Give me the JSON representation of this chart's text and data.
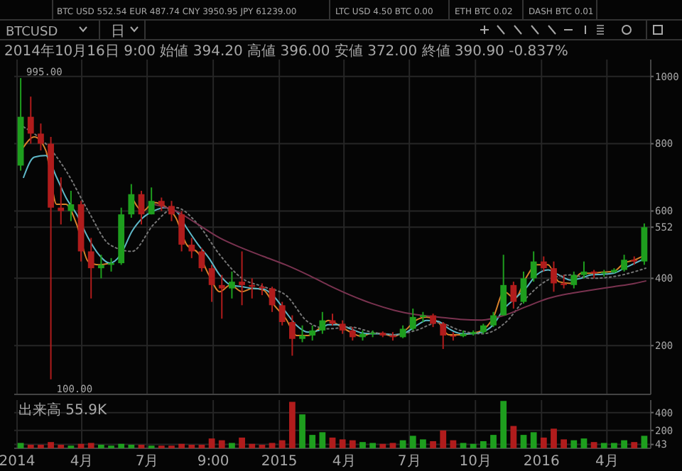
{
  "chart_data": [
    {
      "type": "candlestick",
      "subtitle": "2014年10月16日 9:00 始値 394.20 高値 396.00 安値 372.00 終値 390.90 -0.837%",
      "annotations": [
        "BTC USD 552.54  EUR 487.74  CNY 3950.95  JPY 61239.00",
        "LTC USD 4.50  BTC 0.00",
        "ETH BTC 0.02",
        "DASH BTC 0.01",
        "BTCUSD",
        "日",
        {
          "text": "995.00",
          "x": "2014-01-06",
          "y": 995
        },
        {
          "text": "100.00",
          "x": "2014-02-17",
          "y": 100
        }
      ],
      "x": [
        "2014-01-06",
        "2014-01-20",
        "2014-02-03",
        "2014-02-17",
        "2014-03-03",
        "2014-03-17",
        "2014-03-31",
        "2014-04-14",
        "2014-04-28",
        "2014-05-12",
        "2014-05-26",
        "2014-06-09",
        "2014-06-23",
        "2014-07-07",
        "2014-07-21",
        "2014-08-04",
        "2014-08-18",
        "2014-09-01",
        "2014-09-15",
        "2014-09-29",
        "2014-10-13",
        "2014-10-27",
        "2014-11-10",
        "2014-11-24",
        "2014-12-08",
        "2014-12-22",
        "2015-01-05",
        "2015-01-19",
        "2015-02-02",
        "2015-02-16",
        "2015-03-02",
        "2015-03-16",
        "2015-03-30",
        "2015-04-13",
        "2015-04-27",
        "2015-05-11",
        "2015-05-25",
        "2015-06-08",
        "2015-06-22",
        "2015-07-06",
        "2015-07-20",
        "2015-08-03",
        "2015-08-17",
        "2015-08-31",
        "2015-09-14",
        "2015-09-28",
        "2015-10-12",
        "2015-10-26",
        "2015-11-09",
        "2015-11-23",
        "2015-12-07",
        "2015-12-21",
        "2016-01-04",
        "2016-01-18",
        "2016-02-01",
        "2016-02-15",
        "2016-02-29",
        "2016-03-14",
        "2016-03-28",
        "2016-04-11",
        "2016-04-25",
        "2016-05-09",
        "2016-05-23"
      ],
      "ohlc": [
        [
          735,
          995,
          720,
          880
        ],
        [
          880,
          940,
          800,
          830
        ],
        [
          830,
          860,
          780,
          800
        ],
        [
          800,
          820,
          100,
          610
        ],
        [
          610,
          700,
          560,
          600
        ],
        [
          600,
          660,
          570,
          620
        ],
        [
          620,
          630,
          450,
          480
        ],
        [
          480,
          520,
          340,
          430
        ],
        [
          430,
          470,
          400,
          440
        ],
        [
          440,
          460,
          420,
          445
        ],
        [
          445,
          610,
          440,
          590
        ],
        [
          590,
          680,
          580,
          650
        ],
        [
          650,
          660,
          560,
          590
        ],
        [
          590,
          670,
          590,
          630
        ],
        [
          630,
          640,
          600,
          615
        ],
        [
          615,
          630,
          570,
          590
        ],
        [
          590,
          600,
          480,
          500
        ],
        [
          500,
          520,
          460,
          480
        ],
        [
          480,
          490,
          420,
          430
        ],
        [
          430,
          440,
          330,
          380
        ],
        [
          380,
          410,
          280,
          370
        ],
        [
          370,
          420,
          340,
          390
        ],
        [
          390,
          480,
          320,
          380
        ],
        [
          380,
          400,
          340,
          375
        ],
        [
          375,
          385,
          350,
          370
        ],
        [
          370,
          375,
          300,
          320
        ],
        [
          320,
          330,
          260,
          270
        ],
        [
          270,
          290,
          170,
          220
        ],
        [
          220,
          260,
          210,
          230
        ],
        [
          230,
          260,
          215,
          245
        ],
        [
          245,
          300,
          235,
          275
        ],
        [
          275,
          295,
          260,
          265
        ],
        [
          265,
          275,
          235,
          245
        ],
        [
          245,
          255,
          215,
          225
        ],
        [
          225,
          245,
          215,
          235
        ],
        [
          235,
          245,
          225,
          238
        ],
        [
          238,
          242,
          225,
          230
        ],
        [
          230,
          240,
          215,
          225
        ],
        [
          225,
          260,
          222,
          250
        ],
        [
          250,
          310,
          245,
          285
        ],
        [
          285,
          300,
          270,
          290
        ],
        [
          290,
          295,
          255,
          265
        ],
        [
          265,
          270,
          190,
          230
        ],
        [
          230,
          240,
          215,
          228
        ],
        [
          228,
          245,
          225,
          235
        ],
        [
          235,
          245,
          230,
          240
        ],
        [
          240,
          265,
          235,
          260
        ],
        [
          260,
          300,
          255,
          290
        ],
        [
          290,
          470,
          290,
          380
        ],
        [
          380,
          390,
          310,
          330
        ],
        [
          330,
          420,
          325,
          400
        ],
        [
          400,
          480,
          390,
          450
        ],
        [
          450,
          465,
          420,
          430
        ],
        [
          430,
          450,
          360,
          385
        ],
        [
          385,
          410,
          370,
          380
        ],
        [
          380,
          420,
          370,
          410
        ],
        [
          410,
          450,
          400,
          420
        ],
        [
          420,
          425,
          400,
          415
        ],
        [
          415,
          425,
          405,
          418
        ],
        [
          418,
          430,
          415,
          425
        ],
        [
          425,
          470,
          420,
          455
        ],
        [
          455,
          465,
          440,
          450
        ],
        [
          450,
          563,
          440,
          552
        ]
      ],
      "colors": [
        "#1e9e1e",
        "#b01c1c",
        "#b01c1c",
        "#b01c1c",
        "#b01c1c",
        "#1e9e1e",
        "#b01c1c",
        "#b01c1c",
        "#1e9e1e",
        "#1e9e1e",
        "#1e9e1e",
        "#1e9e1e",
        "#b01c1c",
        "#1e9e1e",
        "#b01c1c",
        "#b01c1c",
        "#b01c1c",
        "#b01c1c",
        "#b01c1c",
        "#b01c1c",
        "#b01c1c",
        "#1e9e1e",
        "#b01c1c",
        "#b01c1c",
        "#b01c1c",
        "#b01c1c",
        "#b01c1c",
        "#b01c1c",
        "#1e9e1e",
        "#1e9e1e",
        "#1e9e1e",
        "#b01c1c",
        "#b01c1c",
        "#b01c1c",
        "#1e9e1e",
        "#1e9e1e",
        "#b01c1c",
        "#b01c1c",
        "#1e9e1e",
        "#1e9e1e",
        "#1e9e1e",
        "#b01c1c",
        "#b01c1c",
        "#b01c1c",
        "#1e9e1e",
        "#1e9e1e",
        "#1e9e1e",
        "#1e9e1e",
        "#1e9e1e",
        "#b01c1c",
        "#1e9e1e",
        "#1e9e1e",
        "#b01c1c",
        "#b01c1c",
        "#b01c1c",
        "#1e9e1e",
        "#1e9e1e",
        "#b01c1c",
        "#1e9e1e",
        "#1e9e1e",
        "#1e9e1e",
        "#b01c1c",
        "#1e9e1e"
      ],
      "series": [
        {
          "type": "line",
          "color": "#d9822b",
          "line_style": "solid",
          "x": [
            "2014-01-10",
            "2014-01-25",
            "2014-02-10",
            "2014-02-25",
            "2014-03-10",
            "2014-03-25",
            "2014-04-10",
            "2014-04-25",
            "2014-05-10",
            "2014-05-25",
            "2014-06-10",
            "2014-06-25",
            "2014-07-10",
            "2014-07-25",
            "2014-08-10",
            "2014-08-25",
            "2014-09-10",
            "2014-09-25",
            "2014-10-10",
            "2014-10-25",
            "2014-11-10",
            "2014-11-25",
            "2014-12-10",
            "2014-12-25",
            "2015-01-10",
            "2015-01-25",
            "2015-02-10",
            "2015-02-25",
            "2015-03-10",
            "2015-03-25",
            "2015-04-10",
            "2015-04-25",
            "2015-05-10",
            "2015-05-25",
            "2015-06-10",
            "2015-06-25",
            "2015-07-10",
            "2015-07-25",
            "2015-08-10",
            "2015-08-25",
            "2015-09-10",
            "2015-09-25",
            "2015-10-10",
            "2015-10-25",
            "2015-11-10",
            "2015-11-25",
            "2015-12-10",
            "2015-12-25",
            "2016-01-10",
            "2016-01-25",
            "2016-02-10",
            "2016-02-25",
            "2016-03-10",
            "2016-03-25",
            "2016-04-10",
            "2016-04-25",
            "2016-05-10",
            "2016-05-25"
          ],
          "values": [
            790,
            820,
            780,
            620,
            620,
            560,
            450,
            440,
            445,
            null,
            640,
            600,
            625,
            615,
            580,
            500,
            475,
            410,
            360,
            380,
            360,
            370,
            365,
            320,
            280,
            230,
            230,
            250,
            275,
            260,
            240,
            228,
            237,
            235,
            228,
            245,
            275,
            285,
            270,
            232,
            232,
            236,
            245,
            280,
            360,
            340,
            400,
            440,
            440,
            390,
            385,
            415,
            415,
            418,
            420,
            445,
            455,
            470
          ]
        },
        {
          "type": "line",
          "color": "#5fb8c8",
          "line_style": "solid",
          "x": [
            "2014-01-10",
            "2014-01-25",
            "2014-02-10",
            "2014-02-25",
            "2014-03-10",
            "2014-03-25",
            "2014-04-10",
            "2014-04-25",
            "2014-05-10",
            "2014-05-25",
            "2014-06-10",
            "2014-06-25",
            "2014-07-10",
            "2014-07-25",
            "2014-08-10",
            "2014-08-25",
            "2014-09-10",
            "2014-09-25",
            "2014-10-10",
            "2014-10-25",
            "2014-11-10",
            "2014-11-25",
            "2014-12-10",
            "2014-12-25",
            "2015-01-10",
            "2015-01-25",
            "2015-02-10",
            "2015-02-25",
            "2015-03-10",
            "2015-03-25",
            "2015-04-10",
            "2015-04-25",
            "2015-05-10",
            "2015-05-25",
            "2015-06-10",
            "2015-06-25",
            "2015-07-10",
            "2015-07-25",
            "2015-08-10",
            "2015-08-25",
            "2015-09-10",
            "2015-09-25",
            "2015-10-10",
            "2015-10-25",
            "2015-11-10",
            "2015-11-25",
            "2015-12-10",
            "2015-12-25",
            "2016-01-10",
            "2016-01-25",
            "2016-02-10",
            "2016-02-25",
            "2016-03-10",
            "2016-03-25",
            "2016-04-10",
            "2016-04-25",
            "2016-05-10",
            "2016-05-25"
          ],
          "values": [
            700,
            760,
            765,
            700,
            640,
            590,
            520,
            470,
            445,
            470,
            540,
            580,
            600,
            610,
            600,
            550,
            500,
            460,
            410,
            380,
            375,
            370,
            368,
            345,
            300,
            260,
            240,
            245,
            262,
            262,
            250,
            238,
            235,
            235,
            232,
            238,
            258,
            275,
            272,
            250,
            236,
            235,
            240,
            260,
            310,
            340,
            370,
            410,
            425,
            410,
            395,
            400,
            410,
            412,
            415,
            430,
            445,
            460
          ]
        },
        {
          "type": "line",
          "color": "#777777",
          "line_style": "dotted",
          "x": [
            "2014-01-10",
            "2014-02-10",
            "2014-03-10",
            "2014-04-10",
            "2014-05-10",
            "2014-06-10",
            "2014-07-10",
            "2014-08-10",
            "2014-09-10",
            "2014-10-10",
            "2014-11-10",
            "2014-12-10",
            "2015-01-10",
            "2015-02-10",
            "2015-03-10",
            "2015-04-10",
            "2015-05-10",
            "2015-06-10",
            "2015-07-10",
            "2015-08-10",
            "2015-09-10",
            "2015-10-10",
            "2015-11-10",
            "2015-12-10",
            "2016-01-10",
            "2016-02-10",
            "2016-03-10",
            "2016-04-10",
            "2016-05-10",
            "2016-05-25"
          ],
          "values": [
            850,
            800,
            720,
            600,
            500,
            480,
            560,
            610,
            560,
            470,
            400,
            375,
            350,
            270,
            250,
            255,
            240,
            232,
            245,
            268,
            245,
            235,
            265,
            340,
            395,
            410,
            400,
            405,
            420,
            430
          ]
        },
        {
          "type": "line",
          "color": "#7a3350",
          "line_style": "solid",
          "x": [
            "2014-07-10",
            "2014-08-10",
            "2014-09-10",
            "2014-10-10",
            "2014-11-10",
            "2014-12-10",
            "2015-01-10",
            "2015-02-10",
            "2015-03-10",
            "2015-04-10",
            "2015-05-10",
            "2015-06-10",
            "2015-07-10",
            "2015-08-10",
            "2015-09-10",
            "2015-10-10",
            "2015-11-10",
            "2015-12-10",
            "2016-01-10",
            "2016-02-10",
            "2016-03-10",
            "2016-04-10",
            "2016-05-10",
            "2016-05-25"
          ],
          "values": [
            620,
            600,
            560,
            520,
            490,
            465,
            440,
            410,
            380,
            350,
            325,
            305,
            292,
            285,
            278,
            276,
            290,
            315,
            340,
            355,
            365,
            375,
            385,
            392
          ]
        }
      ],
      "xlim": [
        "2013-12-28",
        "2016-06-01"
      ],
      "xticks": [
        {
          "value": "2014-01-01",
          "label": null
        },
        {
          "value": "2014-04-01",
          "label": null
        },
        {
          "value": "2014-07-01",
          "label": null
        },
        {
          "value": "2014-10-01",
          "label": null
        },
        {
          "value": "2015-01-01",
          "label": null
        },
        {
          "value": "2015-04-01",
          "label": null
        },
        {
          "value": "2015-07-01",
          "label": null
        },
        {
          "value": "2015-10-01",
          "label": null
        },
        {
          "value": "2016-01-01",
          "label": null
        },
        {
          "value": "2016-04-01",
          "label": null
        }
      ],
      "ylim": [
        55,
        1050
      ],
      "yticks": [
        200,
        400,
        552,
        600,
        800,
        1000
      ],
      "grid": true,
      "tick_labels": "y"
    },
    {
      "type": "bar",
      "title": "出来高 55.9K",
      "x": [
        "2014-01-06",
        "2014-01-20",
        "2014-02-03",
        "2014-02-17",
        "2014-03-03",
        "2014-03-17",
        "2014-03-31",
        "2014-04-14",
        "2014-04-28",
        "2014-05-12",
        "2014-05-26",
        "2014-06-09",
        "2014-06-23",
        "2014-07-07",
        "2014-07-21",
        "2014-08-04",
        "2014-08-18",
        "2014-09-01",
        "2014-09-15",
        "2014-09-29",
        "2014-10-13",
        "2014-10-27",
        "2014-11-10",
        "2014-11-24",
        "2014-12-08",
        "2014-12-22",
        "2015-01-05",
        "2015-01-19",
        "2015-02-02",
        "2015-02-16",
        "2015-03-02",
        "2015-03-16",
        "2015-03-30",
        "2015-04-13",
        "2015-04-27",
        "2015-05-11",
        "2015-05-25",
        "2015-06-08",
        "2015-06-22",
        "2015-07-06",
        "2015-07-20",
        "2015-08-03",
        "2015-08-17",
        "2015-08-31",
        "2015-09-14",
        "2015-09-28",
        "2015-10-12",
        "2015-10-26",
        "2015-11-09",
        "2015-11-23",
        "2015-12-07",
        "2015-12-21",
        "2016-01-04",
        "2016-01-18",
        "2016-02-01",
        "2016-02-15",
        "2016-02-29",
        "2016-03-14",
        "2016-03-28",
        "2016-04-11",
        "2016-04-25",
        "2016-05-09",
        "2016-05-23"
      ],
      "values": [
        60,
        40,
        40,
        70,
        40,
        30,
        50,
        60,
        40,
        30,
        50,
        40,
        40,
        30,
        30,
        30,
        50,
        40,
        40,
        110,
        90,
        60,
        120,
        50,
        40,
        60,
        90,
        520,
        380,
        150,
        180,
        120,
        100,
        90,
        70,
        60,
        50,
        60,
        90,
        140,
        100,
        80,
        200,
        90,
        60,
        50,
        80,
        150,
        530,
        250,
        150,
        180,
        120,
        220,
        100,
        90,
        110,
        70,
        60,
        60,
        90,
        70,
        140
      ],
      "colors": [
        "#1e9e1e",
        "#b01c1c",
        "#b01c1c",
        "#b01c1c",
        "#b01c1c",
        "#1e9e1e",
        "#b01c1c",
        "#b01c1c",
        "#1e9e1e",
        "#1e9e1e",
        "#1e9e1e",
        "#1e9e1e",
        "#b01c1c",
        "#1e9e1e",
        "#b01c1c",
        "#b01c1c",
        "#b01c1c",
        "#b01c1c",
        "#b01c1c",
        "#b01c1c",
        "#b01c1c",
        "#1e9e1e",
        "#b01c1c",
        "#b01c1c",
        "#b01c1c",
        "#b01c1c",
        "#b01c1c",
        "#b01c1c",
        "#1e9e1e",
        "#1e9e1e",
        "#1e9e1e",
        "#b01c1c",
        "#b01c1c",
        "#b01c1c",
        "#1e9e1e",
        "#1e9e1e",
        "#b01c1c",
        "#b01c1c",
        "#1e9e1e",
        "#1e9e1e",
        "#1e9e1e",
        "#b01c1c",
        "#b01c1c",
        "#b01c1c",
        "#1e9e1e",
        "#1e9e1e",
        "#1e9e1e",
        "#1e9e1e",
        "#1e9e1e",
        "#b01c1c",
        "#1e9e1e",
        "#1e9e1e",
        "#b01c1c",
        "#b01c1c",
        "#b01c1c",
        "#1e9e1e",
        "#1e9e1e",
        "#b01c1c",
        "#1e9e1e",
        "#1e9e1e",
        "#1e9e1e",
        "#b01c1c",
        "#1e9e1e"
      ],
      "xlim": [
        "2013-12-28",
        "2016-06-01"
      ],
      "xticks": [
        {
          "value": "2014-01-01",
          "label": "2014"
        },
        {
          "value": "2014-04-01",
          "label": "4月"
        },
        {
          "value": "2014-07-01",
          "label": "7月"
        },
        {
          "value": "2014-10-01",
          "label": "9:00"
        },
        {
          "value": "2015-01-01",
          "label": "2015"
        },
        {
          "value": "2015-04-01",
          "label": "4月"
        },
        {
          "value": "2015-07-01",
          "label": "7月"
        },
        {
          "value": "2015-10-01",
          "label": "10月"
        },
        {
          "value": "2016-01-01",
          "label": "2016"
        },
        {
          "value": "2016-04-01",
          "label": "4月"
        }
      ],
      "ylim": [
        0,
        540
      ],
      "yticks": [
        43,
        200,
        400
      ],
      "grid": true
    }
  ]
}
